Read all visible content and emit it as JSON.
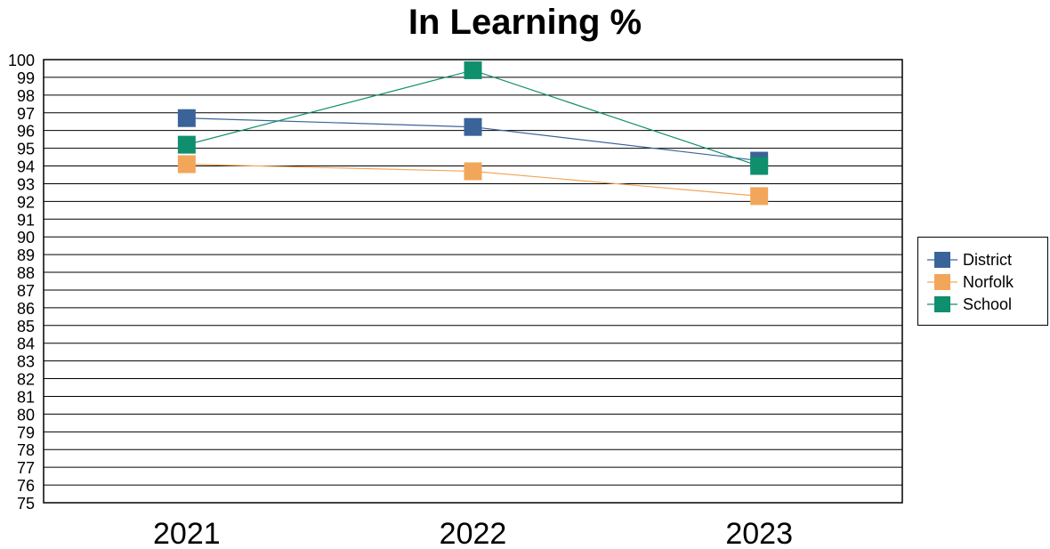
{
  "chart_data": {
    "type": "line",
    "title": "In Learning %",
    "categories": [
      "2021",
      "2022",
      "2023"
    ],
    "ylim": [
      75,
      100
    ],
    "y_ticks": [
      "100",
      "99",
      "98",
      "97",
      "96",
      "95",
      "94",
      "93",
      "92",
      "91",
      "90",
      "89",
      "88",
      "87",
      "86",
      "85",
      "84",
      "83",
      "82",
      "81",
      "80",
      "79",
      "78",
      "77",
      "76",
      "75"
    ],
    "grid": true,
    "legend_position": "right",
    "series": [
      {
        "name": "District",
        "color": "#3a6399",
        "values": [
          96.7,
          96.2,
          94.3
        ]
      },
      {
        "name": "Norfolk",
        "color": "#f2a65a",
        "values": [
          94.1,
          93.7,
          92.3
        ]
      },
      {
        "name": "School",
        "color": "#0f8f6e",
        "values": [
          95.2,
          99.4,
          94.0
        ]
      }
    ]
  }
}
